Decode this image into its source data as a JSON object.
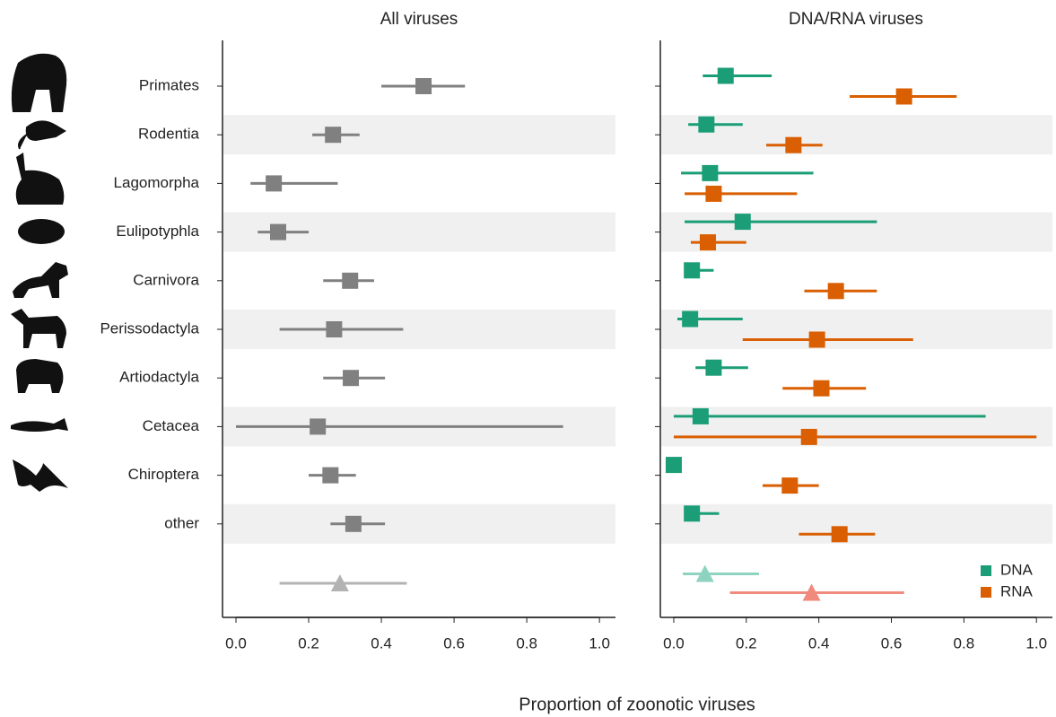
{
  "chart_data": [
    {
      "type": "forest",
      "title": "All viruses",
      "xlabel": "Proportion of zoonotic viruses",
      "categories": [
        "Primates",
        "Rodentia",
        "Lagomorpha",
        "Eulipotyphla",
        "Carnivora",
        "Perissodactyla",
        "Artiodactyla",
        "Cetacea",
        "Chiroptera",
        "other"
      ],
      "xlim": [
        -0.037,
        1.044
      ],
      "xticks": [
        {
          "value": 0,
          "label": "0.0"
        },
        0.2,
        0.4,
        0.6,
        0.8,
        {
          "value": 1,
          "label": "1.0"
        }
      ],
      "bands": true,
      "series": [
        {
          "color": "#808080",
          "values": [
            0.516,
            0.267,
            0.104,
            0.116,
            0.314,
            0.27,
            0.316,
            0.225,
            0.26,
            0.323
          ],
          "lower": [
            0.4,
            0.21,
            0.04,
            0.06,
            0.24,
            0.12,
            0.24,
            0.0,
            0.2,
            0.26
          ],
          "upper": [
            0.63,
            0.34,
            0.28,
            0.2,
            0.38,
            0.46,
            0.41,
            0.9,
            0.33,
            0.41
          ],
          "overall": {
            "value": 0.286,
            "lower": 0.12,
            "upper": 0.47,
            "color": "#b3b3b3"
          }
        }
      ]
    },
    {
      "type": "forest",
      "title": "DNA/RNA viruses",
      "xlim": [
        -0.037,
        1.044
      ],
      "xticks": [
        {
          "value": 0,
          "label": "0.0"
        },
        0.2,
        0.4,
        0.6,
        0.8,
        {
          "value": 1,
          "label": "1.0"
        }
      ],
      "bands": true,
      "legend": "lower right",
      "series": [
        {
          "name": "DNA",
          "color": "#1b9e77",
          "values": [
            0.143,
            0.09,
            0.1,
            0.19,
            0.05,
            0.045,
            0.11,
            0.074,
            0.0,
            0.05
          ],
          "lower": [
            0.08,
            0.04,
            0.02,
            0.03,
            0.03,
            0.01,
            0.06,
            0.0,
            0.0,
            0.03
          ],
          "upper": [
            0.27,
            0.19,
            0.385,
            0.56,
            0.11,
            0.19,
            0.205,
            0.86,
            0.0,
            0.125
          ],
          "overall": {
            "value": 0.086,
            "lower": 0.025,
            "upper": 0.235,
            "color": "#8dd3c0"
          }
        },
        {
          "name": "RNA",
          "color": "#d95f02",
          "values": [
            0.635,
            0.33,
            0.11,
            0.094,
            0.447,
            0.395,
            0.407,
            0.373,
            0.32,
            0.457
          ],
          "lower": [
            0.485,
            0.255,
            0.03,
            0.047,
            0.36,
            0.19,
            0.3,
            0.0,
            0.245,
            0.345
          ],
          "upper": [
            0.78,
            0.41,
            0.34,
            0.2,
            0.56,
            0.66,
            0.53,
            1.0,
            0.4,
            0.555
          ],
          "overall": {
            "value": 0.38,
            "lower": 0.155,
            "upper": 0.635,
            "color": "#f08a7c"
          }
        }
      ]
    }
  ]
}
